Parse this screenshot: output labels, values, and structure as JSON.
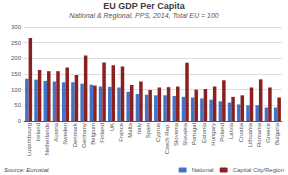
{
  "chart_data": {
    "type": "bar",
    "title": "EU GDP Per Capita",
    "subtitle": "National & Regional, PPS, 2014, Total EU = 100",
    "source": "Source: Eurostat",
    "categories": [
      "Luxembourg",
      "Ireland",
      "Netherlands",
      "Austria",
      "Sweden",
      "Denmark",
      "Germany",
      "Belgium",
      "Finland",
      "UK",
      "France",
      "Malta",
      "Italy",
      "Spain",
      "Cyprus",
      "Czech Rep.",
      "Slovenia",
      "Slovakia",
      "Portugal",
      "Estonia",
      "Hungary",
      "Poland",
      "Latvia",
      "Croatia",
      "Lithuania",
      "Romania",
      "Greece",
      "Bulgaria"
    ],
    "series": [
      {
        "name": "National",
        "color": "#4472c4",
        "values": [
          135,
          132,
          128,
          126,
          124,
          124,
          119,
          116,
          110,
          109,
          107,
          93,
          86,
          84,
          82,
          82,
          80,
          77,
          75,
          72,
          68,
          63,
          59,
          53,
          50,
          50,
          43,
          43
        ]
      },
      {
        "name": "Capital City/Region",
        "color": "#8b2020",
        "values": [
          265,
          163,
          159,
          159,
          171,
          147,
          209,
          113,
          187,
          178,
          174,
          115,
          126,
          99,
          107,
          108,
          110,
          186,
          100,
          102,
          110,
          130,
          77,
          82,
          107,
          133,
          107,
          75
        ]
      }
    ],
    "ylim": [
      0,
      300
    ],
    "yticks": [
      0,
      50,
      100,
      150,
      200,
      250,
      300
    ],
    "grid": true,
    "legend": "lower right"
  }
}
